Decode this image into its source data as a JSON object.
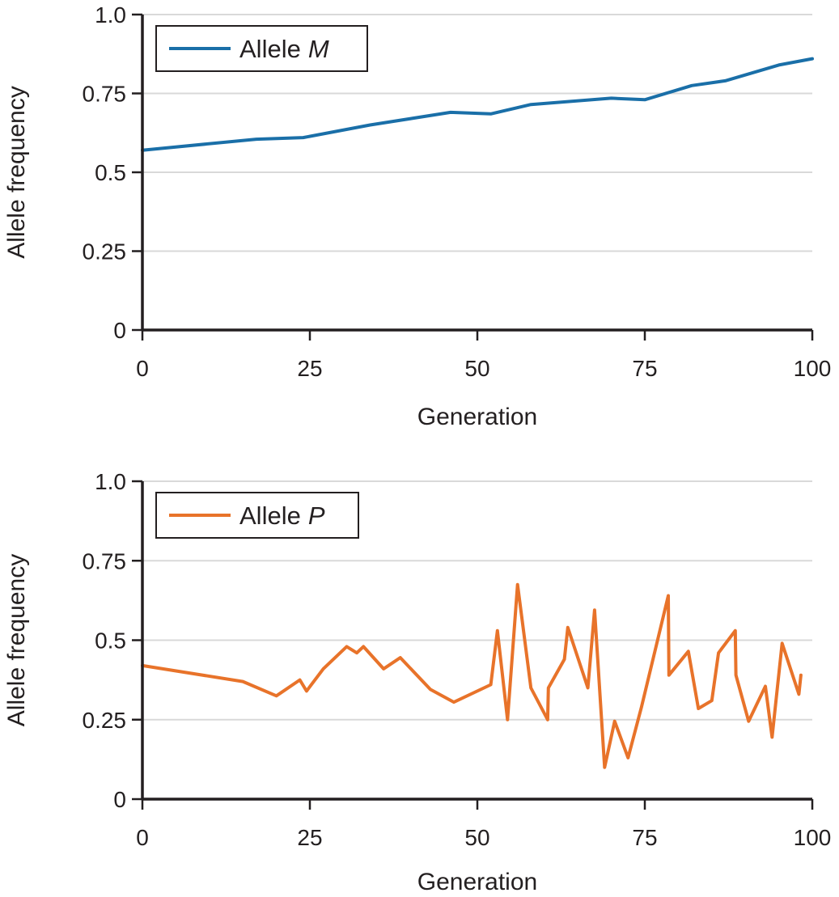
{
  "chart_data": [
    {
      "type": "line",
      "xlabel": "Generation",
      "ylabel": "Allele frequency",
      "xlim": [
        0,
        100
      ],
      "ylim": [
        0,
        1
      ],
      "xticks": [
        "0",
        "25",
        "50",
        "75",
        "100"
      ],
      "yticks": [
        "0",
        "0.25",
        "0.5",
        "0.75",
        "1.0"
      ],
      "grid": true,
      "legend": "top-left",
      "series": [
        {
          "name": "Allele",
          "name_italic": "M",
          "color": "#1a6fa8",
          "x": [
            0,
            17,
            24,
            34,
            46,
            52,
            58,
            70,
            75,
            82,
            87,
            95,
            100
          ],
          "y": [
            0.57,
            0.605,
            0.61,
            0.65,
            0.69,
            0.685,
            0.715,
            0.735,
            0.73,
            0.775,
            0.79,
            0.84,
            0.86
          ]
        }
      ]
    },
    {
      "type": "line",
      "xlabel": "Generation",
      "ylabel": "Allele frequency",
      "xlim": [
        0,
        100
      ],
      "ylim": [
        0,
        1
      ],
      "xticks": [
        "0",
        "25",
        "50",
        "75",
        "100"
      ],
      "yticks": [
        "0",
        "0.25",
        "0.5",
        "0.75",
        "1.0"
      ],
      "grid": true,
      "legend": "top-left",
      "series": [
        {
          "name": "Allele",
          "name_italic": "P",
          "color": "#e8732a",
          "x": [
            0,
            15,
            20,
            23.5,
            24.5,
            27,
            30.5,
            32,
            33,
            36,
            38.5,
            43,
            46.5,
            52,
            53,
            54.5,
            56,
            58,
            60.5,
            60.6,
            63,
            63.5,
            66.5,
            67.5,
            69,
            70.5,
            72.5,
            74.5,
            78.5,
            78.6,
            81.5,
            83,
            85,
            86,
            88.5,
            88.6,
            90.5,
            93,
            94,
            95.5,
            98,
            98.3
          ],
          "y": [
            0.42,
            0.37,
            0.325,
            0.375,
            0.34,
            0.41,
            0.48,
            0.46,
            0.48,
            0.41,
            0.445,
            0.345,
            0.305,
            0.36,
            0.53,
            0.25,
            0.675,
            0.35,
            0.25,
            0.35,
            0.44,
            0.54,
            0.35,
            0.595,
            0.1,
            0.245,
            0.13,
            0.29,
            0.64,
            0.39,
            0.465,
            0.285,
            0.31,
            0.46,
            0.53,
            0.39,
            0.245,
            0.355,
            0.195,
            0.49,
            0.33,
            0.39
          ]
        }
      ]
    }
  ]
}
